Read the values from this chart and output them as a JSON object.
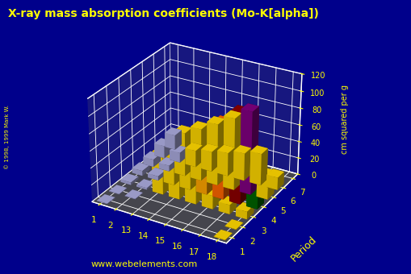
{
  "title": "X-ray mass absorption coefficients (Mo-K[alpha])",
  "xlabel_groups": [
    "1",
    "2",
    "13",
    "14",
    "15",
    "16",
    "17",
    "18"
  ],
  "ylabel_label": "Period",
  "zlabel": "cm squared per g",
  "periods": [
    1,
    2,
    3,
    4,
    5,
    6,
    7
  ],
  "groups": [
    1,
    2,
    13,
    14,
    15,
    16,
    17,
    18
  ],
  "zlim": [
    0,
    120
  ],
  "zticks": [
    0,
    20,
    40,
    60,
    80,
    100,
    120
  ],
  "background_color": "#00008B",
  "title_color": "#FFFF00",
  "axis_color": "#FFFF00",
  "grid_color": "#FFFFFF",
  "floor_color": "#4a4a4a",
  "watermark": "www.webelements.com",
  "data": {
    "1": {
      "1": 0.5,
      "2": null,
      "13": null,
      "14": null,
      "15": null,
      "16": null,
      "17": null,
      "18": 0.5
    },
    "2": {
      "1": 0.5,
      "2": 0.5,
      "13": null,
      "14": null,
      "15": null,
      "16": null,
      "17": null,
      "18": 0.5
    },
    "3": {
      "1": 3.0,
      "2": 2.0,
      "13": 48.0,
      "14": 33.0,
      "15": 23.0,
      "16": 16.0,
      "17": 11.0,
      "18": 9.0
    },
    "4": {
      "1": 6.0,
      "2": 5.0,
      "13": 40.0,
      "14": 60.0,
      "15": 65.0,
      "16": 89.0,
      "17": 106.0,
      "18": 32.0
    },
    "5": {
      "1": 9.0,
      "2": 7.0,
      "13": 52.0,
      "14": 62.0,
      "15": 73.0,
      "16": 85.0,
      "17": 98.0,
      "18": 28.0
    },
    "6": {
      "1": 15.0,
      "2": 12.0,
      "13": 20.0,
      "14": 24.0,
      "15": 28.0,
      "16": 33.0,
      "17": 38.0,
      "18": 15.0
    },
    "7": {
      "1": 18.0,
      "2": null,
      "13": null,
      "14": null,
      "15": null,
      "16": null,
      "17": null,
      "18": null
    }
  },
  "bar_colors": {
    "1": {
      "1": "#AAAADD",
      "2": null,
      "13": null,
      "14": null,
      "15": null,
      "16": null,
      "17": null,
      "18": "#FFD700"
    },
    "2": {
      "1": "#AAAADD",
      "2": "#AAAADD",
      "13": null,
      "14": null,
      "15": null,
      "16": null,
      "17": null,
      "18": "#FFD700"
    },
    "3": {
      "1": "#AAAADD",
      "2": "#AAAADD",
      "13": "#FFD700",
      "14": "#FFD700",
      "15": "#FFD700",
      "16": "#FFD700",
      "17": "#FFD700",
      "18": "#FFD700"
    },
    "4": {
      "1": "#AAAADD",
      "2": "#AAAADD",
      "13": "#FFD700",
      "14": "#FFD700",
      "15": "#FFA500",
      "16": "#FF6600",
      "17": "#8B0000",
      "18": "#006400"
    },
    "5": {
      "1": "#AAAADD",
      "2": "#AAAADD",
      "13": "#FFD700",
      "14": "#FFD700",
      "15": "#FFD700",
      "16": "#FFD700",
      "17": "#800080",
      "18": "#FFD700"
    },
    "6": {
      "1": "#AAAADD",
      "2": "#AAAADD",
      "13": "#FFD700",
      "14": "#FFD700",
      "15": "#FFD700",
      "16": "#FFD700",
      "17": "#FFD700",
      "18": "#FFD700"
    },
    "7": {
      "1": "#AAAADD",
      "2": null,
      "13": null,
      "14": null,
      "15": null,
      "16": null,
      "17": null,
      "18": null
    }
  },
  "elev": 28,
  "azim": -60
}
